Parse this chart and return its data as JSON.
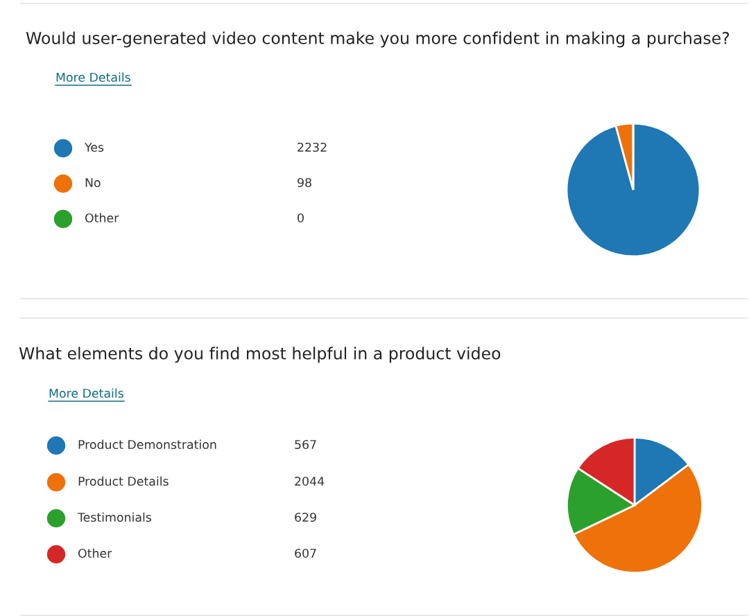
{
  "chart_data": [
    {
      "type": "pie",
      "title": "Would user-generated video content make you more confident in making a purchase?",
      "annotations": [
        "More Details"
      ],
      "categories": [
        "Yes",
        "No",
        "Other"
      ],
      "values": [
        2232,
        98,
        0
      ],
      "value_labels": [
        "2232",
        "98",
        "0"
      ],
      "colors": [
        "#1f77b4",
        "#ee7109",
        "#2ca02c"
      ],
      "legend": "left"
    },
    {
      "type": "pie",
      "title": "What elements do you find most helpful in a product video",
      "annotations": [
        "More Details"
      ],
      "categories": [
        "Product Demonstration",
        "Product Details",
        "Testimonials",
        "Other"
      ],
      "values": [
        567,
        2044,
        629,
        607
      ],
      "colors": [
        "#1f77b4",
        "#ee7109",
        "#2ca02c",
        "#d62728"
      ],
      "legend": "left",
      "data_labels": true
    }
  ]
}
